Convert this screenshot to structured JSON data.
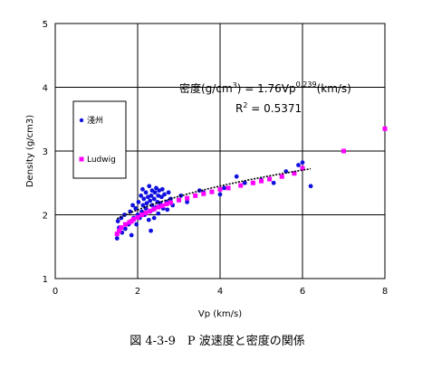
{
  "chart_data": {
    "type": "scatter",
    "title": "",
    "xlabel": "Vp (km/s)",
    "ylabel": "Density (g/cm3)",
    "xlim": [
      0,
      8
    ],
    "ylim": [
      1,
      5
    ],
    "xticks": [
      "0",
      "2",
      "4",
      "6",
      "8"
    ],
    "yticks": [
      "1",
      "2",
      "3",
      "4",
      "5"
    ],
    "grid": true,
    "legend_position": "left-middle",
    "series": [
      {
        "name": "淺州",
        "color": "#1010e0",
        "marker": "circle",
        "points": [
          [
            1.5,
            1.63
          ],
          [
            1.52,
            1.9
          ],
          [
            1.55,
            1.8
          ],
          [
            1.6,
            1.95
          ],
          [
            1.62,
            1.72
          ],
          [
            1.68,
            2.0
          ],
          [
            1.7,
            1.78
          ],
          [
            1.72,
            1.85
          ],
          [
            1.78,
            1.85
          ],
          [
            1.82,
            2.05
          ],
          [
            1.85,
            1.68
          ],
          [
            1.88,
            2.15
          ],
          [
            1.9,
            1.95
          ],
          [
            1.95,
            2.1
          ],
          [
            1.97,
            1.85
          ],
          [
            2.0,
            2.0
          ],
          [
            2.02,
            2.2
          ],
          [
            2.05,
            1.95
          ],
          [
            2.08,
            2.3
          ],
          [
            2.1,
            2.05
          ],
          [
            2.12,
            2.4
          ],
          [
            2.13,
            2.15
          ],
          [
            2.15,
            2.25
          ],
          [
            2.17,
            2.0
          ],
          [
            2.2,
            2.1
          ],
          [
            2.2,
            2.35
          ],
          [
            2.22,
            2.18
          ],
          [
            2.25,
            2.28
          ],
          [
            2.27,
            1.92
          ],
          [
            2.28,
            2.45
          ],
          [
            2.3,
            2.05
          ],
          [
            2.3,
            2.22
          ],
          [
            2.32,
            1.75
          ],
          [
            2.33,
            2.3
          ],
          [
            2.35,
            2.15
          ],
          [
            2.35,
            2.38
          ],
          [
            2.38,
            2.08
          ],
          [
            2.4,
            2.25
          ],
          [
            2.4,
            1.95
          ],
          [
            2.42,
            2.35
          ],
          [
            2.45,
            2.12
          ],
          [
            2.45,
            2.42
          ],
          [
            2.48,
            2.2
          ],
          [
            2.5,
            2.3
          ],
          [
            2.5,
            2.02
          ],
          [
            2.52,
            2.38
          ],
          [
            2.55,
            2.18
          ],
          [
            2.58,
            2.28
          ],
          [
            2.6,
            2.4
          ],
          [
            2.62,
            2.1
          ],
          [
            2.65,
            2.32
          ],
          [
            2.7,
            2.2
          ],
          [
            2.72,
            2.08
          ],
          [
            2.75,
            2.35
          ],
          [
            2.8,
            2.25
          ],
          [
            2.85,
            2.15
          ],
          [
            3.05,
            2.3
          ],
          [
            3.2,
            2.2
          ],
          [
            3.5,
            2.38
          ],
          [
            3.6,
            2.35
          ],
          [
            4.0,
            2.32
          ],
          [
            4.1,
            2.42
          ],
          [
            4.4,
            2.6
          ],
          [
            4.6,
            2.5
          ],
          [
            5.0,
            2.55
          ],
          [
            5.3,
            2.5
          ],
          [
            5.6,
            2.68
          ],
          [
            5.9,
            2.78
          ],
          [
            6.0,
            2.82
          ],
          [
            6.2,
            2.45
          ]
        ]
      },
      {
        "name": "Ludwig",
        "color": "#ff00ff",
        "marker": "square",
        "points": [
          [
            1.5,
            1.7
          ],
          [
            1.55,
            1.75
          ],
          [
            1.6,
            1.8
          ],
          [
            1.7,
            1.85
          ],
          [
            1.8,
            1.88
          ],
          [
            1.85,
            1.9
          ],
          [
            1.9,
            1.93
          ],
          [
            2.0,
            1.96
          ],
          [
            2.1,
            2.0
          ],
          [
            2.2,
            2.03
          ],
          [
            2.3,
            2.06
          ],
          [
            2.4,
            2.09
          ],
          [
            2.5,
            2.12
          ],
          [
            2.6,
            2.14
          ],
          [
            2.7,
            2.17
          ],
          [
            2.8,
            2.19
          ],
          [
            3.0,
            2.23
          ],
          [
            3.2,
            2.26
          ],
          [
            3.4,
            2.3
          ],
          [
            3.6,
            2.33
          ],
          [
            3.8,
            2.36
          ],
          [
            4.0,
            2.4
          ],
          [
            4.2,
            2.42
          ],
          [
            4.5,
            2.46
          ],
          [
            4.8,
            2.5
          ],
          [
            5.0,
            2.53
          ],
          [
            5.2,
            2.56
          ],
          [
            5.5,
            2.6
          ],
          [
            5.8,
            2.65
          ],
          [
            6.0,
            2.73
          ],
          [
            7.0,
            3.0
          ],
          [
            8.0,
            3.35
          ]
        ]
      }
    ],
    "trendline": {
      "coefficient": 1.76,
      "exponent": 0.239,
      "x_range": [
        1.5,
        6.2
      ],
      "style": "dotted",
      "color": "#000000"
    },
    "annotation": {
      "equation_prefix": "密度(g/cm",
      "equation_sup1": "3",
      "equation_mid": ") = 1.76Vp",
      "equation_sup2": "0.239",
      "equation_suffix": "(km/s)",
      "r2_prefix": "R",
      "r2_sup": "2",
      "r2_suffix": " = 0.5371"
    },
    "caption": "図 4-3-9　P 波速度と密度の関係"
  }
}
